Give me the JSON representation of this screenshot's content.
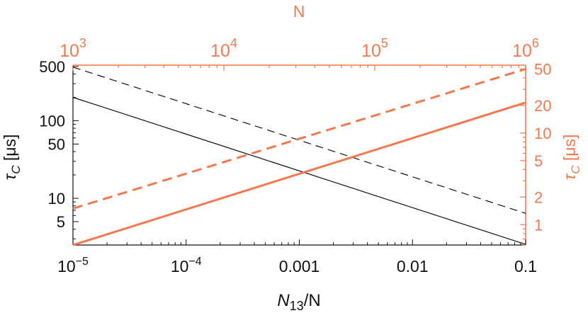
{
  "colors": {
    "black": "#111111",
    "orange": "#f4784f"
  },
  "chart_data": {
    "type": "line",
    "scale": "log-log",
    "bottom_axis": {
      "label": "N13/N",
      "label_main": "N",
      "label_sub": "13",
      "label_tail": "/N",
      "range": [
        1e-05,
        0.1
      ],
      "ticks": [
        {
          "value": 1e-05,
          "base": "10",
          "exp": "−5",
          "text": ""
        },
        {
          "value": 0.0001,
          "base": "10",
          "exp": "−4",
          "text": ""
        },
        {
          "value": 0.001,
          "base": "",
          "exp": "",
          "text": "0.001"
        },
        {
          "value": 0.01,
          "base": "",
          "exp": "",
          "text": "0.01"
        },
        {
          "value": 0.1,
          "base": "",
          "exp": "",
          "text": "0.1"
        }
      ]
    },
    "top_axis": {
      "label": "N",
      "range": [
        1000,
        1000000
      ],
      "ticks": [
        {
          "value": 1000,
          "base": "10",
          "exp": "3"
        },
        {
          "value": 10000,
          "base": "10",
          "exp": "4"
        },
        {
          "value": 100000,
          "base": "10",
          "exp": "5"
        },
        {
          "value": 1000000,
          "base": "10",
          "exp": "6"
        }
      ]
    },
    "left_axis": {
      "label": "τc [μs]",
      "label_main": "τ",
      "label_sub": "C",
      "label_tail": " [μs]",
      "range": [
        2.5,
        520
      ],
      "ticks": [
        5,
        10,
        50,
        100,
        500
      ],
      "tick_labels": [
        "5",
        "10",
        "50",
        "100",
        "500"
      ]
    },
    "right_axis": {
      "label": "τc [μs]",
      "label_main": "τ",
      "label_sub": "C",
      "label_tail": " [μs]",
      "range": [
        0.6,
        55
      ],
      "ticks": [
        1,
        2,
        5,
        10,
        20,
        50
      ],
      "tick_labels": [
        "1",
        "2",
        "5",
        "10",
        "20",
        "50"
      ]
    },
    "series": [
      {
        "axis": "bottom-left",
        "color": "#111111",
        "style": "solid",
        "width": 1.2,
        "x": [
          1e-05,
          0.1
        ],
        "y": [
          200,
          2.55
        ]
      },
      {
        "axis": "bottom-left",
        "color": "#111111",
        "style": "dashed",
        "width": 1.2,
        "x": [
          1e-05,
          0.1
        ],
        "y": [
          490,
          6.4
        ]
      },
      {
        "axis": "top-right",
        "color": "#f4784f",
        "style": "solid",
        "width": 3,
        "x": [
          1000,
          1000000
        ],
        "y": [
          0.6,
          21.5
        ]
      },
      {
        "axis": "top-right",
        "color": "#f4784f",
        "style": "dashed",
        "width": 3,
        "x": [
          1000,
          1000000
        ],
        "y": [
          1.5,
          50
        ]
      }
    ]
  }
}
